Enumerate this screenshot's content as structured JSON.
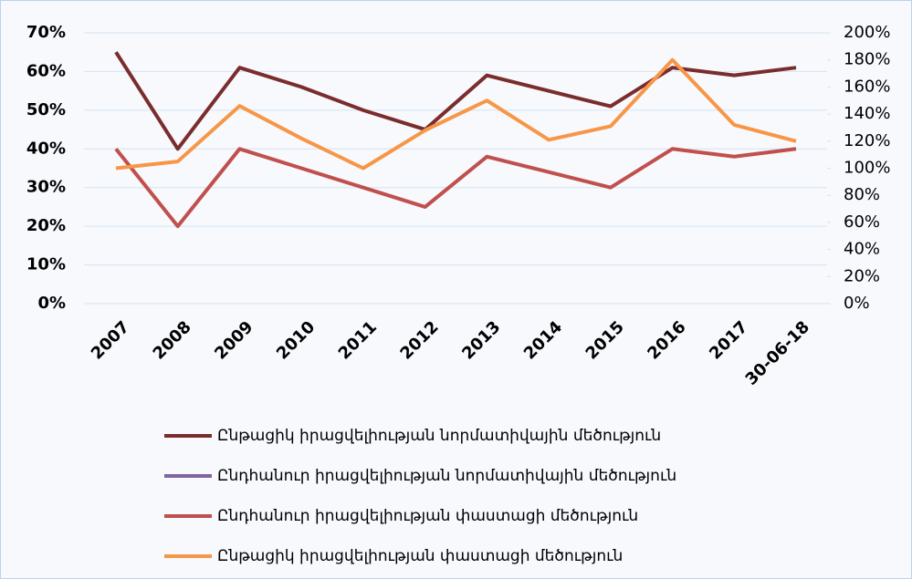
{
  "chart_data": {
    "type": "line",
    "categories": [
      "2007",
      "2008",
      "2009",
      "2010",
      "2011",
      "2012",
      "2013",
      "2014",
      "2015",
      "2016",
      "2017",
      "30-06-18"
    ],
    "series": [
      {
        "name": "Ընթացիկ իրացվելիության նորմատիվային մեծություն",
        "color": "#7b2c2c",
        "values": [
          65,
          40,
          61,
          56,
          50,
          45,
          59,
          55,
          51,
          61,
          59,
          61
        ]
      },
      {
        "name": "Ընդհանուր իրացվելիության նորմատիվային մեծություն",
        "color": "#8064a2",
        "values": [
          null,
          null,
          null,
          null,
          null,
          null,
          null,
          null,
          null,
          null,
          null,
          null
        ]
      },
      {
        "name": "Ընդհանուր իրացվելիության փաստացի մեծություն",
        "color": "#c0504d",
        "values": [
          40,
          20,
          40,
          35,
          30,
          25,
          38,
          34,
          30,
          40,
          38,
          40
        ]
      },
      {
        "name": "Ընթացիկ իրացվելիության փաստացի մեծություն",
        "color": "#f79646",
        "axis": "y2",
        "values": [
          100,
          105,
          146,
          122,
          100,
          128,
          150,
          121,
          131,
          180,
          132,
          120
        ]
      }
    ],
    "ylim": [
      0,
      70
    ],
    "yticks": [
      {
        "value": 0,
        "label": "0%"
      },
      {
        "value": 10,
        "label": "10%"
      },
      {
        "value": 20,
        "label": "20%"
      },
      {
        "value": 30,
        "label": "30%"
      },
      {
        "value": 40,
        "label": "40%"
      },
      {
        "value": 50,
        "label": "50%"
      },
      {
        "value": 60,
        "label": "60%"
      },
      {
        "value": 70,
        "label": "70%"
      }
    ],
    "y2lim": [
      0,
      200
    ],
    "y2ticks": [
      {
        "value": 0,
        "label": "0%"
      },
      {
        "value": 20,
        "label": "20%"
      },
      {
        "value": 40,
        "label": "40%"
      },
      {
        "value": 60,
        "label": "60%"
      },
      {
        "value": 80,
        "label": "80%"
      },
      {
        "value": 100,
        "label": "100%"
      },
      {
        "value": 120,
        "label": "120%"
      },
      {
        "value": 140,
        "label": "140%"
      },
      {
        "value": 160,
        "label": "160%"
      },
      {
        "value": 180,
        "label": "180%"
      },
      {
        "value": 200,
        "label": "200%"
      }
    ],
    "grid": true,
    "legend": "bottom"
  }
}
